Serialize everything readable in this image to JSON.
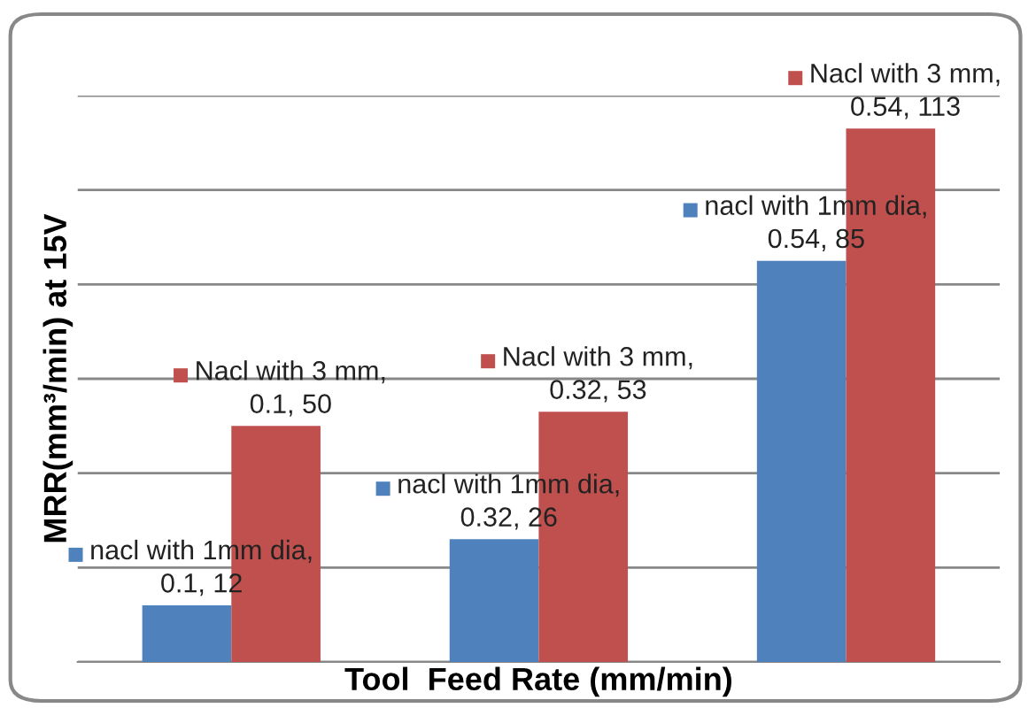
{
  "chart_data": {
    "type": "bar",
    "xlabel": "Tool  Feed Rate (mm/min)",
    "ylabel": "MRR(mm³/min) at 15V",
    "categories": [
      null,
      null,
      null
    ],
    "series": [
      {
        "color": "#4f81bd",
        "values": [
          12,
          26,
          85
        ],
        "value_labels": [
          "nacl with 1mm dia,\n0.1, 12",
          "nacl with 1mm dia,\n0.32, 26",
          "nacl with 1mm dia,\n0.54, 85"
        ]
      },
      {
        "color": "#c0504d",
        "values": [
          50,
          53,
          113
        ],
        "value_labels": [
          "Nacl with 3 mm,\n0.1, 50",
          "Nacl with 3 mm,\n0.32, 53",
          "Nacl with 3 mm,\n0.54, 113"
        ]
      }
    ],
    "ylim": [
      0,
      120
    ],
    "yticks": [
      {
        "value": 0,
        "label": null
      },
      {
        "value": 20,
        "label": null
      },
      {
        "value": 40,
        "label": null
      },
      {
        "value": 60,
        "label": null
      },
      {
        "value": 80,
        "label": null
      },
      {
        "value": 100,
        "label": null
      },
      {
        "value": 120,
        "label": null
      }
    ],
    "tick_labels": false,
    "grid": "y",
    "legend": false
  }
}
